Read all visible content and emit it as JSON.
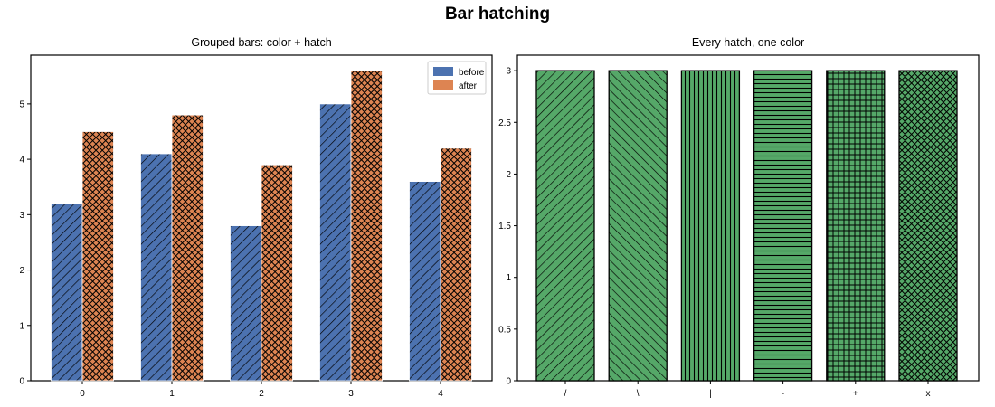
{
  "figure": {
    "title": "Bar hatching"
  },
  "chart_data": [
    {
      "type": "bar",
      "title": "Grouped bars: color + hatch",
      "xlabel": "",
      "ylabel": "",
      "categories": [
        "0",
        "1",
        "2",
        "3",
        "4"
      ],
      "series": [
        {
          "name": "before",
          "values": [
            3.2,
            4.1,
            2.8,
            5.0,
            3.6
          ],
          "color": "#4c72b0",
          "hatch": "///"
        },
        {
          "name": "after",
          "values": [
            4.5,
            4.8,
            3.9,
            5.6,
            4.2
          ],
          "color": "#dd8452",
          "hatch": "xxx"
        }
      ],
      "ylim": [
        0,
        5.88
      ],
      "yticks": [
        "0",
        "1",
        "2",
        "3",
        "4",
        "5"
      ],
      "legend": "top-right",
      "grid": false
    },
    {
      "type": "bar",
      "title": "Every hatch, one color",
      "xlabel": "",
      "ylabel": "",
      "categories": [
        "/",
        "\\",
        "|",
        "-",
        "+",
        "x"
      ],
      "values": [
        3,
        3,
        3,
        3,
        3,
        3
      ],
      "color": "#55a868",
      "ylim": [
        0,
        3.15
      ],
      "yticks": [
        "0",
        "0.5",
        "1",
        "1.5",
        "2",
        "2.5",
        "3"
      ],
      "legend": "none",
      "grid": false
    }
  ]
}
